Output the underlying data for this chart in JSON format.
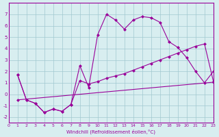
{
  "bg_color": "#d8eef0",
  "grid_color": "#a0c8d0",
  "line_color": "#990099",
  "xlabel": "Windchill (Refroidissement éolien,°C)",
  "xlim": [
    0,
    23
  ],
  "ylim": [
    -2.5,
    8
  ],
  "yticks": [
    -2,
    -1,
    0,
    1,
    2,
    3,
    4,
    5,
    6,
    7
  ],
  "xticks": [
    0,
    1,
    2,
    3,
    4,
    5,
    6,
    7,
    8,
    9,
    10,
    11,
    12,
    13,
    14,
    15,
    16,
    17,
    18,
    19,
    20,
    21,
    22,
    23
  ],
  "series1_x": [
    1,
    2,
    3,
    4,
    5,
    6,
    7,
    8,
    9,
    10,
    11,
    12,
    13,
    14,
    15,
    16,
    17,
    18,
    19,
    20,
    21,
    22,
    23
  ],
  "series1_y": [
    1.7,
    -0.5,
    -0.8,
    -1.6,
    -1.3,
    -1.5,
    -0.9,
    2.5,
    0.6,
    5.2,
    7.0,
    6.5,
    5.7,
    6.5,
    6.8,
    6.7,
    6.3,
    4.6,
    4.1,
    3.2,
    2.0,
    1.0,
    2.0
  ],
  "series2_x": [
    1,
    2,
    3,
    4,
    5,
    6,
    7,
    8,
    9,
    10,
    11,
    12,
    13,
    14,
    15,
    16,
    17,
    18,
    19,
    20,
    21,
    22,
    23
  ],
  "series2_y": [
    1.7,
    -0.5,
    -0.8,
    -1.6,
    -1.3,
    -1.5,
    -0.9,
    1.2,
    0.9,
    1.1,
    1.4,
    1.6,
    1.8,
    2.1,
    2.4,
    2.7,
    3.0,
    3.3,
    3.6,
    3.9,
    4.2,
    4.4,
    1.1
  ],
  "series3_x": [
    1,
    23
  ],
  "series3_y": [
    -0.5,
    1.05
  ]
}
